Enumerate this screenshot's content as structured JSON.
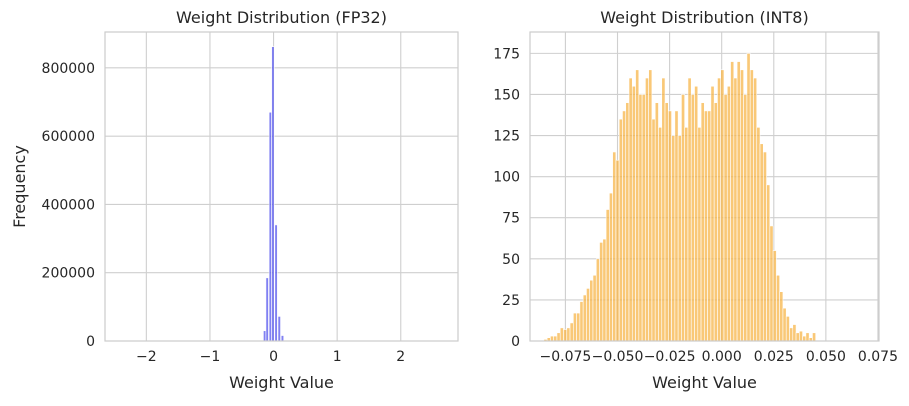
{
  "chart_data": [
    {
      "type": "bar",
      "title": "Weight Distribution (FP32)",
      "xlabel": "Weight Value",
      "ylabel": "Frequency",
      "xlim": [
        -2.65,
        2.9
      ],
      "ylim": [
        0,
        905000
      ],
      "xticks": [
        -2,
        -1,
        0,
        1,
        2
      ],
      "xtick_labels": [
        "−2",
        "−1",
        "0",
        "1",
        "2"
      ],
      "yticks": [
        0,
        200000,
        400000,
        600000,
        800000
      ],
      "ytick_labels": [
        "0",
        "200000",
        "400000",
        "600000",
        "800000"
      ],
      "grid": true,
      "color": "#5555ee",
      "bin_width": 0.04,
      "bins": [
        {
          "x": -0.18,
          "y": 2000
        },
        {
          "x": -0.14,
          "y": 30000
        },
        {
          "x": -0.1,
          "y": 185000
        },
        {
          "x": -0.05,
          "y": 670000
        },
        {
          "x": -0.01,
          "y": 862000
        },
        {
          "x": 0.04,
          "y": 340000
        },
        {
          "x": 0.09,
          "y": 72000
        },
        {
          "x": 0.14,
          "y": 16000
        },
        {
          "x": 0.18,
          "y": 1500
        }
      ]
    },
    {
      "type": "bar",
      "title": "Weight Distribution (INT8)",
      "xlabel": "Weight Value",
      "ylabel": "",
      "xlim": [
        -0.092,
        0.0755
      ],
      "ylim": [
        0,
        188
      ],
      "xticks": [
        -0.075,
        -0.05,
        -0.025,
        0.0,
        0.025,
        0.05,
        0.075
      ],
      "xtick_labels": [
        "−0.075",
        "−0.050",
        "−0.025",
        "0.000",
        "0.025",
        "0.050",
        "0.075"
      ],
      "yticks": [
        0,
        25,
        50,
        75,
        100,
        125,
        150,
        175
      ],
      "ytick_labels": [
        "0",
        "25",
        "50",
        "75",
        "100",
        "125",
        "150",
        "175"
      ],
      "grid": true,
      "color": "#f7b64a",
      "x_start": -0.0885,
      "bin_width": 0.001572,
      "counts": [
        0,
        0,
        1,
        2,
        3,
        3,
        5,
        8,
        7,
        8,
        11,
        17,
        17,
        24,
        28,
        32,
        37,
        40,
        50,
        60,
        62,
        80,
        90,
        115,
        110,
        135,
        140,
        145,
        160,
        155,
        165,
        150,
        150,
        160,
        165,
        135,
        145,
        130,
        160,
        145,
        140,
        125,
        140,
        125,
        150,
        130,
        160,
        150,
        155,
        130,
        145,
        140,
        140,
        155,
        145,
        160,
        165,
        150,
        155,
        170,
        160,
        170,
        165,
        150,
        175,
        165,
        160,
        130,
        120,
        115,
        95,
        70,
        55,
        40,
        30,
        20,
        15,
        8,
        10,
        5,
        6,
        3,
        5,
        2,
        5
      ]
    }
  ]
}
